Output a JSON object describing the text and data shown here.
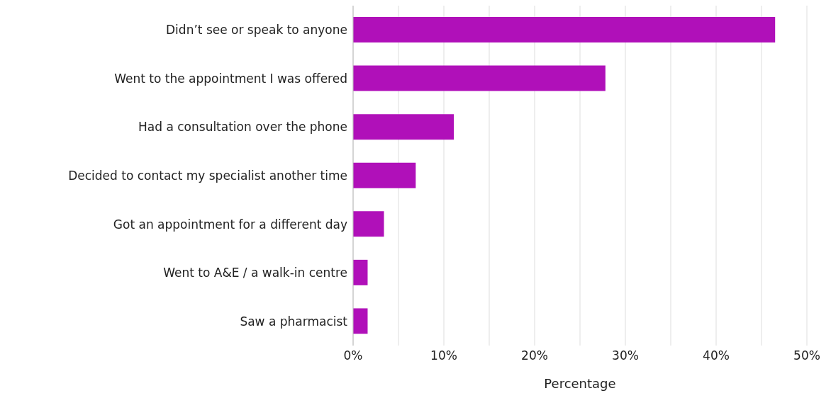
{
  "chart_data": {
    "type": "bar",
    "orientation": "horizontal",
    "xlabel": "Percentage",
    "categories": [
      "Didn’t see or speak to anyone",
      "Went to the appointment I was offered",
      "Had a consultation over the phone",
      "Decided to contact my specialist another time",
      "Got an appointment for a different day",
      "Went to A&E / a walk-in centre",
      "Saw a pharmacist"
    ],
    "values": [
      46.5,
      27.8,
      11.1,
      6.9,
      3.4,
      1.6,
      1.6
    ],
    "color": "#b010b9",
    "xlim": [
      0,
      50
    ],
    "xticks": [
      {
        "value": 0,
        "label": "0%"
      },
      {
        "value": 5,
        "label": null
      },
      {
        "value": 10,
        "label": "10%"
      },
      {
        "value": 15,
        "label": null
      },
      {
        "value": 20,
        "label": "20%"
      },
      {
        "value": 25,
        "label": null
      },
      {
        "value": 30,
        "label": "30%"
      },
      {
        "value": 35,
        "label": null
      },
      {
        "value": 40,
        "label": "40%"
      },
      {
        "value": 45,
        "label": null
      },
      {
        "value": 50,
        "label": "50%"
      }
    ],
    "grid": "x",
    "legend": false
  }
}
